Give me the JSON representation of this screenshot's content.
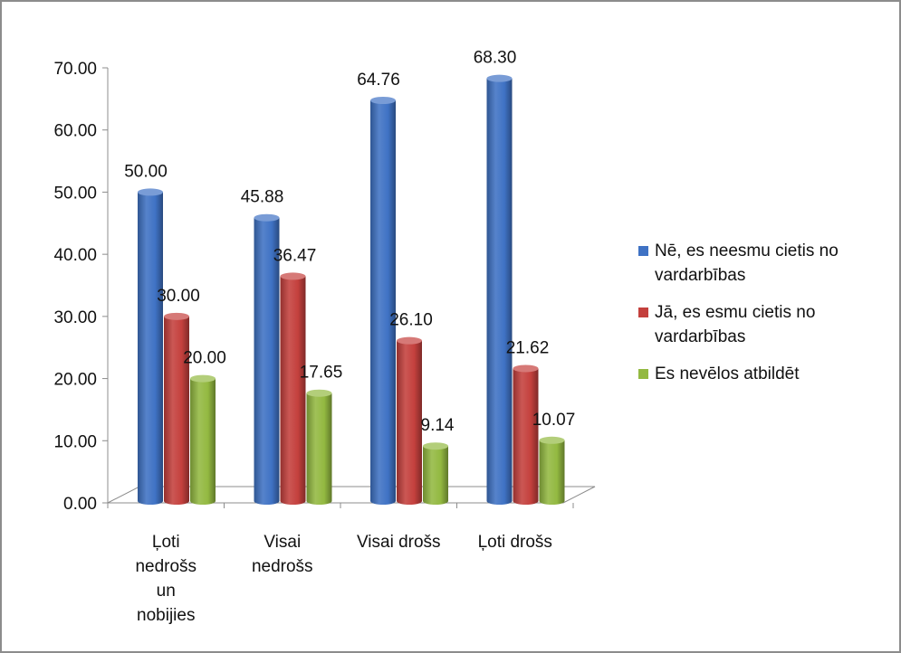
{
  "chart_data": {
    "type": "bar",
    "title": "",
    "xlabel": "",
    "ylabel": "",
    "categories": [
      [
        "Ļoti",
        "nedrošs",
        "un",
        "nobijies"
      ],
      [
        "Visai",
        "nedrošs"
      ],
      [
        "Visai drošs"
      ],
      [
        "Ļoti drošs"
      ]
    ],
    "series": [
      {
        "name": "Nē, es neesmu cietis no vardarbības",
        "color": "#3f72c4",
        "values": [
          50.0,
          45.88,
          64.76,
          68.3
        ],
        "labels": [
          "50.00",
          "45.88",
          "64.76",
          "68.30"
        ]
      },
      {
        "name": "Jā, es esmu cietis no vardarbības",
        "color": "#c4403d",
        "values": [
          30.0,
          36.47,
          26.1,
          21.62
        ],
        "labels": [
          "30.00",
          "36.47",
          "26.10",
          "21.62"
        ]
      },
      {
        "name": "Es nevēlos atbildēt",
        "color": "#93b941",
        "values": [
          20.0,
          17.65,
          9.14,
          10.07
        ],
        "labels": [
          "20.00",
          "17.65",
          "9.14",
          "10.07"
        ]
      }
    ],
    "yticks": [
      "0.00",
      "10.00",
      "20.00",
      "30.00",
      "40.00",
      "50.00",
      "60.00",
      "70.00"
    ],
    "ylim": [
      0,
      70
    ],
    "grid": false,
    "legend_position": "right"
  },
  "legend": {
    "items": [
      {
        "lines": [
          "Nē, es neesmu cietis no",
          "vardarbības"
        ],
        "color": "#3f72c4"
      },
      {
        "lines": [
          "Jā, es esmu cietis no",
          "vardarbības"
        ],
        "color": "#c4403d"
      },
      {
        "lines": [
          "Es nevēlos atbildēt"
        ],
        "color": "#93b941"
      }
    ]
  }
}
